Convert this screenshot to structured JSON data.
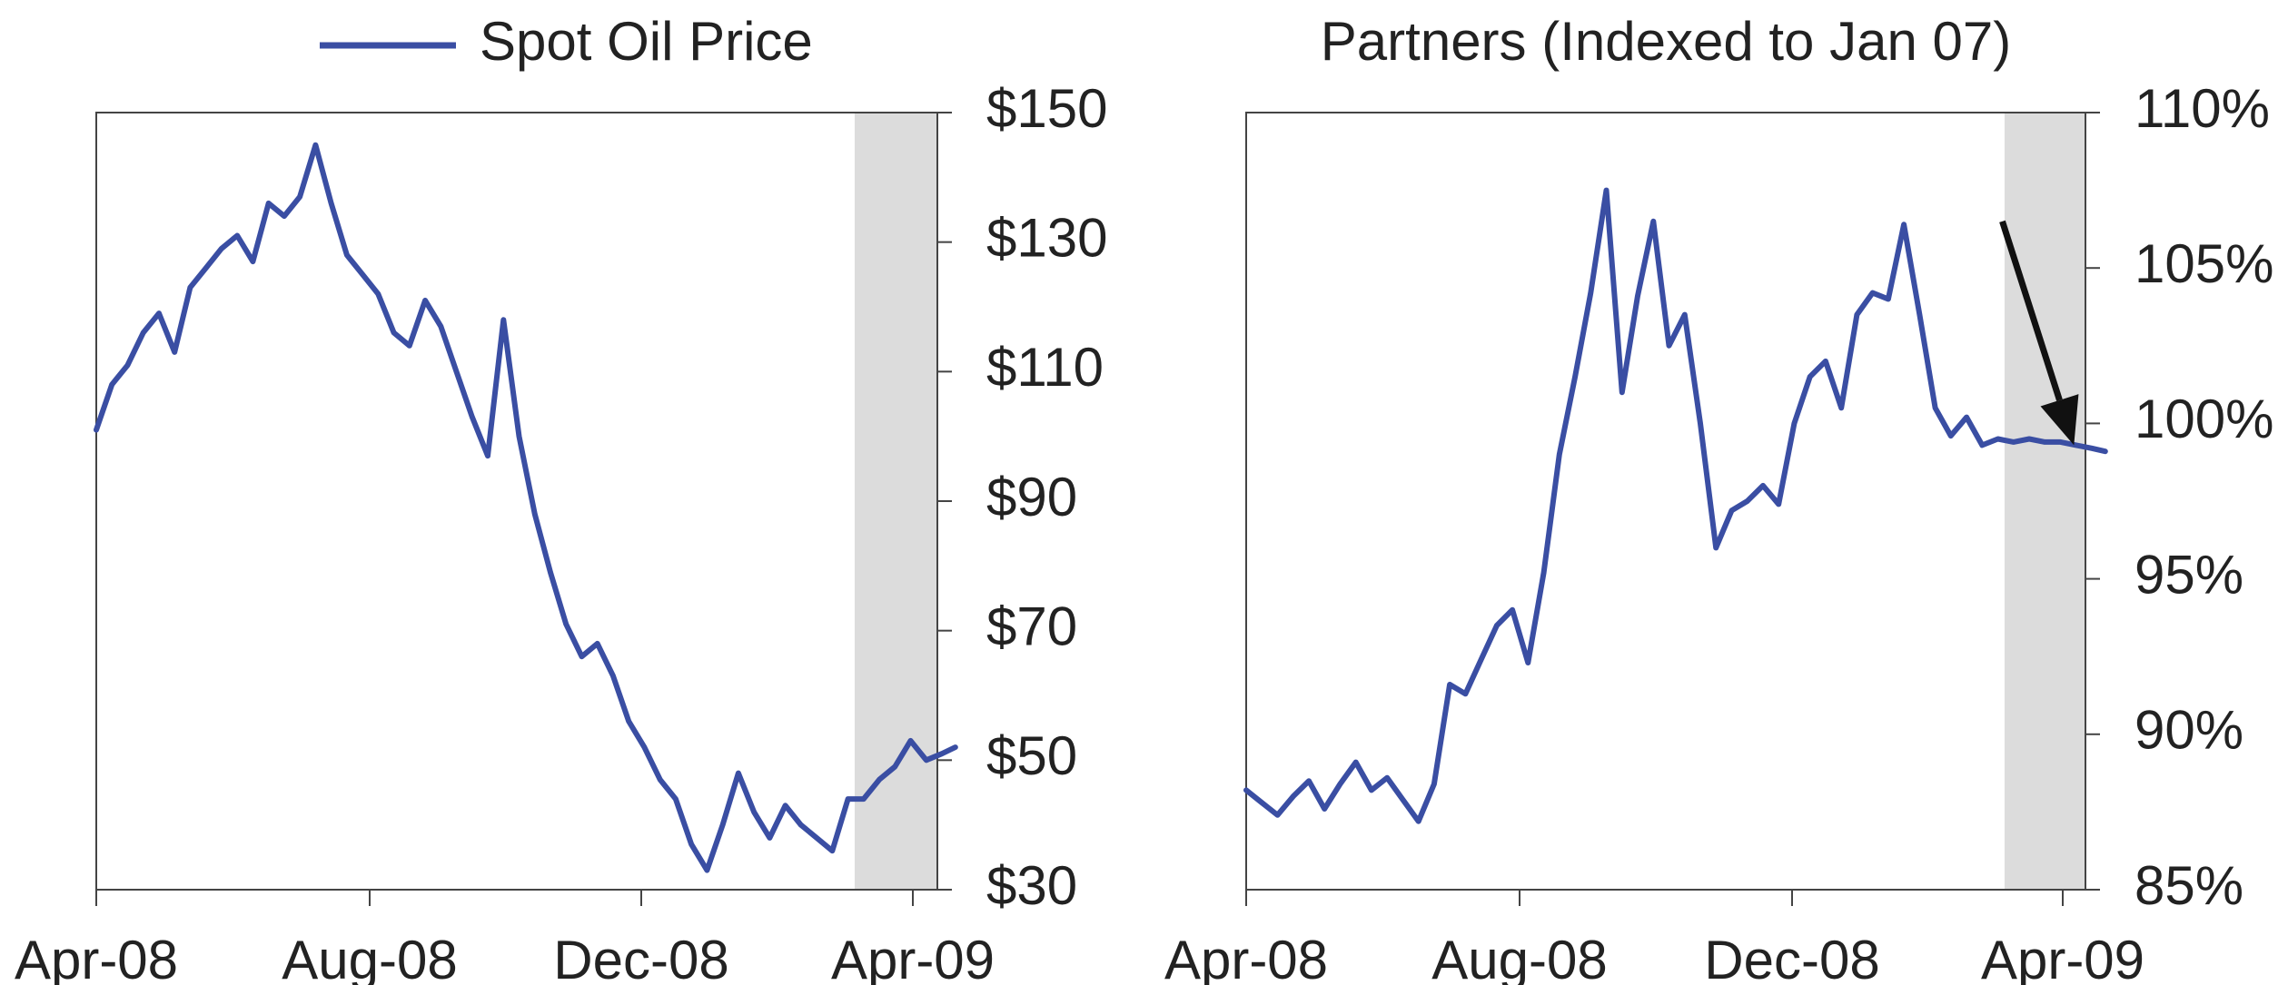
{
  "chart_data": [
    {
      "type": "line",
      "title": "",
      "legend": {
        "placement": "top-left",
        "entries": [
          "Spot Oil Price"
        ]
      },
      "xlabel": "",
      "ylabel": "",
      "y_axis_side": "right",
      "x_ticks": [
        "Apr-08",
        "Aug-08",
        "Dec-08",
        "Apr-09"
      ],
      "x_range": [
        "2008-04-01",
        "2009-04-20"
      ],
      "ylim": [
        30,
        150
      ],
      "y_ticks": [
        30,
        50,
        70,
        90,
        110,
        130,
        150
      ],
      "y_tick_labels": [
        "$30",
        "$50",
        "$70",
        "$90",
        "$110",
        "$130",
        "$150"
      ],
      "grid": false,
      "shaded_region": {
        "start": "2009-03-06",
        "end": "2009-04-20"
      },
      "series": [
        {
          "name": "Spot Oil Price",
          "color": "#3a4ea3",
          "x": [
            "2008-04-01",
            "2008-04-08",
            "2008-04-15",
            "2008-04-22",
            "2008-04-29",
            "2008-05-06",
            "2008-05-13",
            "2008-05-20",
            "2008-05-27",
            "2008-06-03",
            "2008-06-10",
            "2008-06-17",
            "2008-06-24",
            "2008-07-01",
            "2008-07-08",
            "2008-07-15",
            "2008-07-22",
            "2008-07-29",
            "2008-08-05",
            "2008-08-12",
            "2008-08-19",
            "2008-08-26",
            "2008-09-02",
            "2008-09-09",
            "2008-09-16",
            "2008-09-23",
            "2008-09-30",
            "2008-10-07",
            "2008-10-14",
            "2008-10-21",
            "2008-10-28",
            "2008-11-04",
            "2008-11-11",
            "2008-11-18",
            "2008-11-25",
            "2008-12-02",
            "2008-12-09",
            "2008-12-16",
            "2008-12-23",
            "2008-12-30",
            "2009-01-06",
            "2009-01-13",
            "2009-01-20",
            "2009-01-27",
            "2009-02-03",
            "2009-02-10",
            "2009-02-17",
            "2009-02-24",
            "2009-03-03",
            "2009-03-10",
            "2009-03-17",
            "2009-03-24",
            "2009-03-31",
            "2009-04-07",
            "2009-04-14",
            "2009-04-20"
          ],
          "values": [
            101,
            108,
            111,
            116,
            119,
            113,
            123,
            126,
            129,
            131,
            127,
            136,
            134,
            137,
            145,
            136,
            128,
            125,
            122,
            116,
            114,
            121,
            117,
            110,
            103,
            97,
            118,
            100,
            88,
            79,
            71,
            66,
            68,
            63,
            56,
            52,
            47,
            44,
            37,
            33,
            40,
            48,
            42,
            38,
            43,
            40,
            38,
            36,
            44,
            44,
            47,
            49,
            53,
            50,
            51,
            52
          ]
        }
      ]
    },
    {
      "type": "line",
      "title": "Partners (Indexed to Jan 07)",
      "xlabel": "",
      "ylabel": "",
      "y_axis_side": "right",
      "x_ticks": [
        "Apr-08",
        "Aug-08",
        "Dec-08",
        "Apr-09"
      ],
      "x_range": [
        "2008-04-01",
        "2009-04-20"
      ],
      "ylim": [
        85,
        110
      ],
      "y_ticks": [
        85,
        90,
        95,
        100,
        105,
        110
      ],
      "y_tick_labels": [
        "85%",
        "90%",
        "95%",
        "100%",
        "105%",
        "110%"
      ],
      "grid": false,
      "shaded_region": {
        "start": "2009-03-06",
        "end": "2009-04-20"
      },
      "annotation": {
        "type": "arrow",
        "from": [
          "2009-03-05",
          106.5
        ],
        "to": [
          "2009-04-06",
          99.3
        ]
      },
      "series": [
        {
          "name": "",
          "color": "#3a4ea3",
          "x": [
            "2008-04-01",
            "2008-04-08",
            "2008-04-15",
            "2008-04-22",
            "2008-04-29",
            "2008-05-06",
            "2008-05-13",
            "2008-05-20",
            "2008-05-27",
            "2008-06-03",
            "2008-06-10",
            "2008-06-17",
            "2008-06-24",
            "2008-07-01",
            "2008-07-08",
            "2008-07-15",
            "2008-07-22",
            "2008-07-29",
            "2008-08-05",
            "2008-08-12",
            "2008-08-19",
            "2008-08-26",
            "2008-09-02",
            "2008-09-09",
            "2008-09-16",
            "2008-09-23",
            "2008-09-30",
            "2008-10-07",
            "2008-10-14",
            "2008-10-21",
            "2008-10-28",
            "2008-11-04",
            "2008-11-11",
            "2008-11-18",
            "2008-11-25",
            "2008-12-02",
            "2008-12-09",
            "2008-12-16",
            "2008-12-23",
            "2008-12-30",
            "2009-01-06",
            "2009-01-13",
            "2009-01-20",
            "2009-01-27",
            "2009-02-03",
            "2009-02-10",
            "2009-02-17",
            "2009-02-24",
            "2009-03-03",
            "2009-03-10",
            "2009-03-17",
            "2009-03-24",
            "2009-03-31",
            "2009-04-07",
            "2009-04-14",
            "2009-04-20"
          ],
          "values": [
            88.2,
            87.8,
            87.4,
            88.0,
            88.5,
            87.6,
            88.4,
            89.1,
            88.2,
            88.6,
            87.9,
            87.2,
            88.4,
            91.6,
            91.3,
            92.4,
            93.5,
            94.0,
            92.3,
            95.2,
            99.0,
            101.5,
            104.2,
            107.5,
            101.0,
            104.1,
            106.5,
            102.5,
            103.5,
            100.0,
            96.0,
            97.2,
            97.5,
            98.0,
            97.4,
            100.0,
            101.5,
            102.0,
            100.5,
            103.5,
            104.2,
            104.0,
            106.4,
            103.5,
            100.5,
            99.6,
            100.2,
            99.3,
            99.5,
            99.4,
            99.5,
            99.4,
            99.4,
            99.3,
            99.2,
            99.1
          ]
        }
      ]
    }
  ]
}
